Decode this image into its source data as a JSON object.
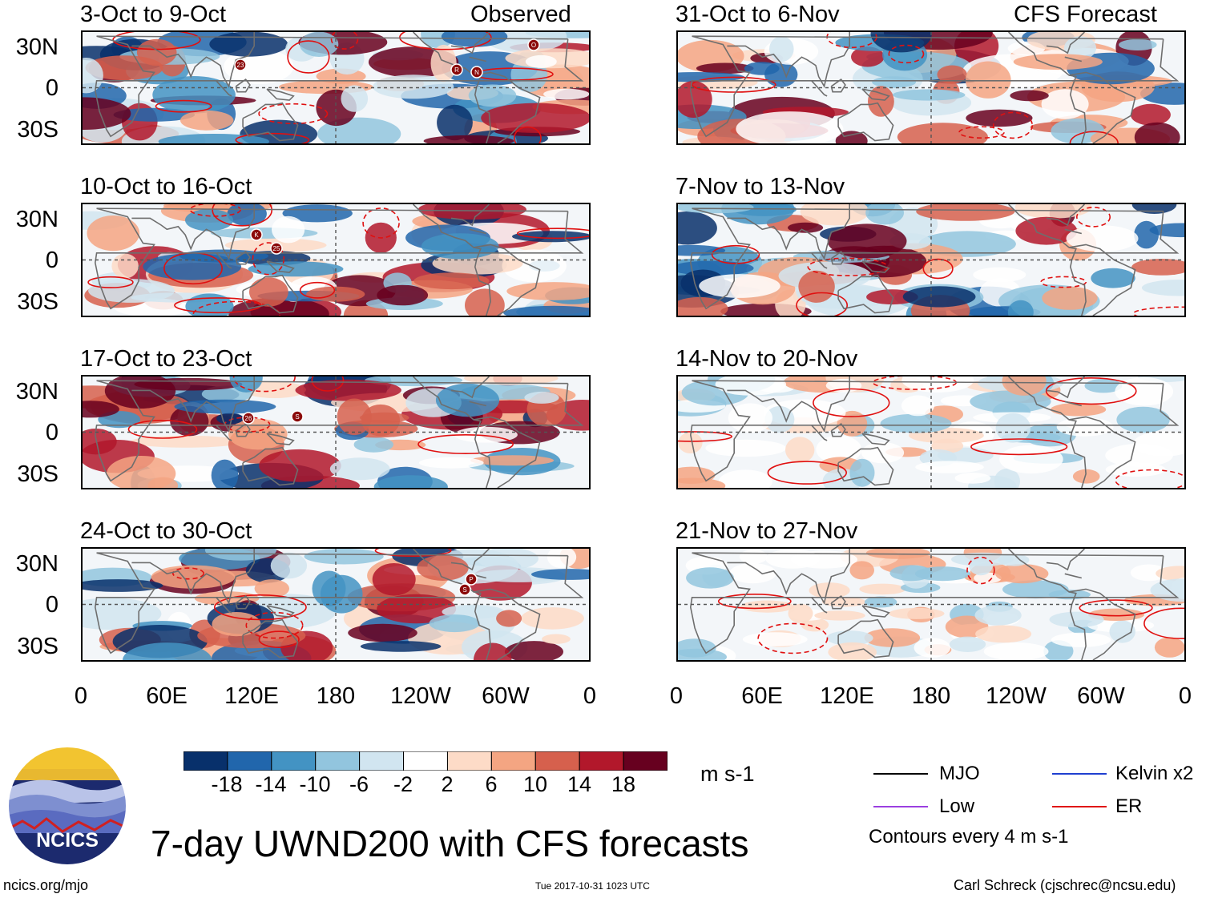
{
  "columns": [
    {
      "header": "Observed",
      "panels": [
        "3-Oct to 9-Oct",
        "10-Oct to 16-Oct",
        "17-Oct to 23-Oct",
        "24-Oct to 30-Oct"
      ]
    },
    {
      "header": "CFS Forecast",
      "panels": [
        "31-Oct to 6-Nov",
        "7-Nov to 13-Nov",
        "14-Nov to 20-Nov",
        "21-Nov to 27-Nov"
      ]
    }
  ],
  "lat_ticks": [
    "30N",
    "0",
    "30S"
  ],
  "lon_ticks": [
    "0",
    "60E",
    "120E",
    "180",
    "120W",
    "60W",
    "0"
  ],
  "colorbar": {
    "labels": [
      "-18",
      "-14",
      "-10",
      "-6",
      "-2",
      "2",
      "6",
      "10",
      "14",
      "18"
    ],
    "colors": [
      "#08306b",
      "#2166ac",
      "#4393c3",
      "#92c5de",
      "#d1e5f0",
      "#ffffff",
      "#fddbc7",
      "#f4a582",
      "#d6604d",
      "#b2182b",
      "#67001f"
    ],
    "units": "m s-1"
  },
  "legend": {
    "items": [
      {
        "label": "MJO",
        "color": "#000000"
      },
      {
        "label": "Kelvin x2",
        "color": "#1f3fd0"
      },
      {
        "label": "Low",
        "color": "#9b3fe0"
      },
      {
        "label": "ER",
        "color": "#e01010"
      }
    ],
    "note": "Contours every 4 m s-1"
  },
  "title": "7-day UWND200 with CFS forecasts",
  "logo_text": "NCICS",
  "website": "ncics.org/mjo",
  "timestamp": "Tue 2017-10-31 1023 UTC",
  "author": "Carl Schreck (cjschrec@ncsu.edu)",
  "storm_markers": {
    "panel_0": [
      "23",
      "R",
      "N",
      "O"
    ],
    "panel_1": [
      "K",
      "25"
    ],
    "panel_2": [
      "26",
      "S"
    ],
    "panel_3": [
      "P",
      "S"
    ]
  }
}
